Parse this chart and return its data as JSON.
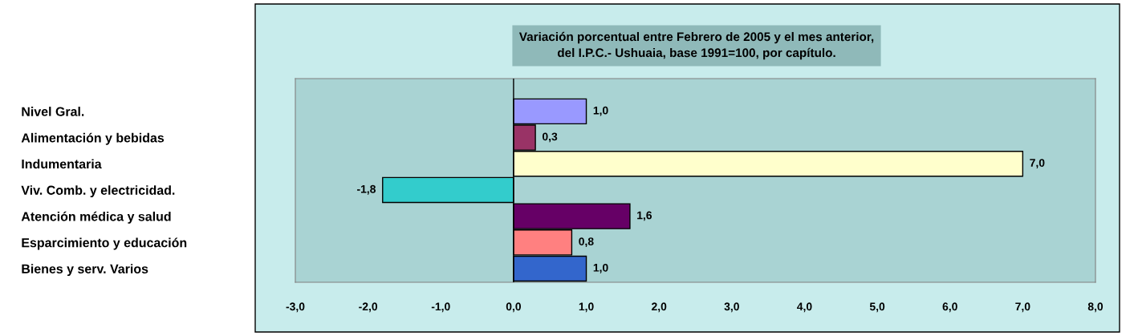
{
  "chart_data": {
    "type": "bar",
    "orientation": "horizontal",
    "title": "Variación porcentual entre Febrero de 2005 y el mes anterior,\ndel I.P.C.- Ushuaia, base 1991=100, por capítulo.",
    "categories": [
      "Nivel Gral.",
      "Alimentación y bebidas",
      "Indumentaria",
      "Viv. Comb. y electricidad.",
      "Atención médica y salud",
      "Esparcimiento y educación",
      "Bienes y serv. Varios"
    ],
    "values": [
      1.0,
      0.3,
      7.0,
      -1.8,
      1.6,
      0.8,
      1.0
    ],
    "colors": [
      "#9999ff",
      "#993366",
      "#ffffcc",
      "#33cccc",
      "#660066",
      "#ff8080",
      "#3366cc"
    ],
    "value_labels": [
      "1,0",
      "0,3",
      "7,0",
      "-1,8",
      "1,6",
      "0,8",
      "1,0"
    ],
    "xlim": [
      -3,
      8
    ],
    "xticks": [
      {
        "value": -3,
        "label": "-3,0"
      },
      {
        "value": -2,
        "label": "-2,0"
      },
      {
        "value": -1,
        "label": "-1,0"
      },
      {
        "value": 0,
        "label": "0,0"
      },
      {
        "value": 1,
        "label": "1,0"
      },
      {
        "value": 2,
        "label": "2,0"
      },
      {
        "value": 3,
        "label": "3,0"
      },
      {
        "value": 4,
        "label": "4,0"
      },
      {
        "value": 5,
        "label": "5,0"
      },
      {
        "value": 6,
        "label": "6,0"
      },
      {
        "value": 7,
        "label": "7,0"
      },
      {
        "value": 8,
        "label": "8,0"
      }
    ],
    "ref_lines": [
      {
        "axis": "x",
        "value": 0,
        "color": "#000000"
      }
    ],
    "grid": false,
    "legend": false
  }
}
